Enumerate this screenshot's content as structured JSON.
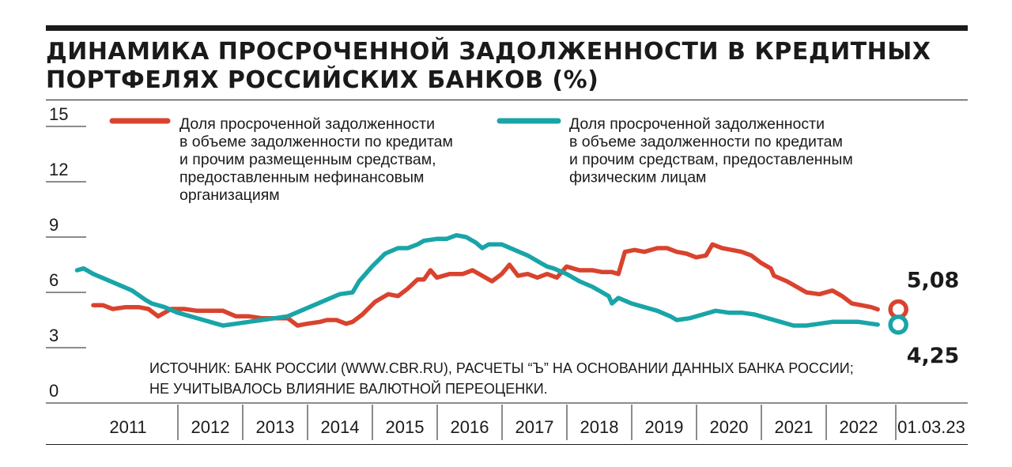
{
  "header": {
    "title_line1": "ДИНАМИКА ПРОСРОЧЕННОЙ ЗАДОЛЖЕННОСТИ В КРЕДИТНЫХ",
    "title_line2": "ПОРТФЕЛЯХ РОССИЙСКИХ БАНКОВ (%)"
  },
  "colors": {
    "series_corporate": "#d9432e",
    "series_retail": "#19a5a8",
    "text": "#1a1a1a"
  },
  "chart_data": {
    "type": "line",
    "title": "ДИНАМИКА ПРОСРОЧЕННОЙ ЗАДОЛЖЕННОСТИ В КРЕДИТНЫХ ПОРТФЕЛЯХ РОССИЙСКИХ БАНКОВ (%)",
    "ylim": [
      0,
      15
    ],
    "yticks": [
      "15",
      "12",
      "9",
      "6",
      "3",
      "0"
    ],
    "xticks": [
      "2011",
      "2012",
      "2013",
      "2014",
      "2015",
      "2016",
      "2017",
      "2018",
      "2019",
      "2020",
      "2021",
      "2022",
      "01.03.23"
    ],
    "grid": false,
    "legend_position": "top",
    "series": [
      {
        "name": "Доля просроченной задолженности в объеме задолженности по кредитам и прочим размещенным средствам, предоставленным нефинансовым организациям",
        "legend_lines": [
          "Доля просроченной задолженности",
          "в объеме задолженности по кредитам",
          "и прочим размещенным средствам,",
          "предоставленным нефинансовым",
          "организациям"
        ],
        "color": "#d9432e",
        "end_value": 5.08,
        "end_label": "5,08",
        "points": [
          [
            2011.0,
            5.3
          ],
          [
            2011.15,
            5.3
          ],
          [
            2011.3,
            5.1
          ],
          [
            2011.5,
            5.2
          ],
          [
            2011.7,
            5.2
          ],
          [
            2011.85,
            5.1
          ],
          [
            2012.0,
            4.7
          ],
          [
            2012.2,
            5.1
          ],
          [
            2012.4,
            5.1
          ],
          [
            2012.6,
            5.0
          ],
          [
            2012.8,
            5.0
          ],
          [
            2013.0,
            5.0
          ],
          [
            2013.2,
            4.7
          ],
          [
            2013.4,
            4.7
          ],
          [
            2013.6,
            4.6
          ],
          [
            2013.8,
            4.6
          ],
          [
            2014.0,
            4.6
          ],
          [
            2014.15,
            4.2
          ],
          [
            2014.3,
            4.3
          ],
          [
            2014.5,
            4.4
          ],
          [
            2014.6,
            4.5
          ],
          [
            2014.75,
            4.5
          ],
          [
            2014.9,
            4.3
          ],
          [
            2015.0,
            4.4
          ],
          [
            2015.15,
            4.8
          ],
          [
            2015.35,
            5.5
          ],
          [
            2015.55,
            5.9
          ],
          [
            2015.7,
            5.8
          ],
          [
            2015.85,
            6.2
          ],
          [
            2016.0,
            6.7
          ],
          [
            2016.1,
            6.7
          ],
          [
            2016.2,
            7.2
          ],
          [
            2016.3,
            6.8
          ],
          [
            2016.5,
            7.0
          ],
          [
            2016.7,
            7.0
          ],
          [
            2016.85,
            7.2
          ],
          [
            2017.0,
            6.9
          ],
          [
            2017.15,
            6.6
          ],
          [
            2017.3,
            7.0
          ],
          [
            2017.42,
            7.5
          ],
          [
            2017.55,
            6.9
          ],
          [
            2017.7,
            7.0
          ],
          [
            2017.85,
            6.8
          ],
          [
            2018.0,
            7.0
          ],
          [
            2018.15,
            6.8
          ],
          [
            2018.3,
            7.4
          ],
          [
            2018.5,
            7.2
          ],
          [
            2018.7,
            7.2
          ],
          [
            2018.85,
            7.1
          ],
          [
            2019.0,
            7.1
          ],
          [
            2019.1,
            7.0
          ],
          [
            2019.2,
            8.2
          ],
          [
            2019.35,
            8.3
          ],
          [
            2019.5,
            8.2
          ],
          [
            2019.7,
            8.4
          ],
          [
            2019.85,
            8.4
          ],
          [
            2020.0,
            8.2
          ],
          [
            2020.15,
            8.1
          ],
          [
            2020.3,
            7.9
          ],
          [
            2020.45,
            8.0
          ],
          [
            2020.55,
            8.6
          ],
          [
            2020.7,
            8.4
          ],
          [
            2020.85,
            8.3
          ],
          [
            2021.0,
            8.2
          ],
          [
            2021.15,
            8.0
          ],
          [
            2021.3,
            7.6
          ],
          [
            2021.45,
            7.3
          ],
          [
            2021.5,
            6.9
          ],
          [
            2021.7,
            6.6
          ],
          [
            2021.85,
            6.3
          ],
          [
            2022.0,
            6.0
          ],
          [
            2022.2,
            5.9
          ],
          [
            2022.4,
            6.1
          ],
          [
            2022.55,
            5.8
          ],
          [
            2022.7,
            5.4
          ],
          [
            2022.85,
            5.3
          ],
          [
            2023.0,
            5.2
          ],
          [
            2023.1,
            5.08
          ]
        ]
      },
      {
        "name": "Доля просроченной задолженности в объеме задолженности по кредитам и прочим средствам, предоставленным физическим лицам",
        "legend_lines": [
          "Доля просроченной задолженности",
          "в объеме задолженности по кредитам",
          "и прочим средствам, предоставленным",
          "физическим лицам"
        ],
        "color": "#19a5a8",
        "end_value": 4.25,
        "end_label": "4,25",
        "points": [
          [
            2010.75,
            7.2
          ],
          [
            2010.85,
            7.3
          ],
          [
            2011.0,
            7.0
          ],
          [
            2011.2,
            6.7
          ],
          [
            2011.4,
            6.4
          ],
          [
            2011.6,
            6.1
          ],
          [
            2011.8,
            5.6
          ],
          [
            2011.9,
            5.4
          ],
          [
            2012.1,
            5.2
          ],
          [
            2012.3,
            4.9
          ],
          [
            2012.5,
            4.7
          ],
          [
            2012.7,
            4.5
          ],
          [
            2012.9,
            4.3
          ],
          [
            2013.0,
            4.2
          ],
          [
            2013.2,
            4.3
          ],
          [
            2013.4,
            4.4
          ],
          [
            2013.6,
            4.5
          ],
          [
            2013.8,
            4.6
          ],
          [
            2014.0,
            4.7
          ],
          [
            2014.2,
            5.0
          ],
          [
            2014.4,
            5.3
          ],
          [
            2014.6,
            5.6
          ],
          [
            2014.8,
            5.9
          ],
          [
            2015.0,
            6.0
          ],
          [
            2015.1,
            6.6
          ],
          [
            2015.3,
            7.4
          ],
          [
            2015.5,
            8.1
          ],
          [
            2015.7,
            8.4
          ],
          [
            2015.85,
            8.4
          ],
          [
            2016.0,
            8.6
          ],
          [
            2016.1,
            8.8
          ],
          [
            2016.3,
            8.9
          ],
          [
            2016.45,
            8.9
          ],
          [
            2016.6,
            9.1
          ],
          [
            2016.75,
            9.0
          ],
          [
            2016.9,
            8.7
          ],
          [
            2017.0,
            8.4
          ],
          [
            2017.1,
            8.6
          ],
          [
            2017.3,
            8.6
          ],
          [
            2017.5,
            8.3
          ],
          [
            2017.7,
            8.0
          ],
          [
            2017.9,
            7.6
          ],
          [
            2018.0,
            7.4
          ],
          [
            2018.1,
            7.3
          ],
          [
            2018.3,
            7.0
          ],
          [
            2018.5,
            6.6
          ],
          [
            2018.7,
            6.3
          ],
          [
            2018.85,
            6.0
          ],
          [
            2018.95,
            5.8
          ],
          [
            2019.0,
            5.4
          ],
          [
            2019.1,
            5.7
          ],
          [
            2019.3,
            5.4
          ],
          [
            2019.5,
            5.2
          ],
          [
            2019.7,
            5.0
          ],
          [
            2019.9,
            4.7
          ],
          [
            2020.0,
            4.5
          ],
          [
            2020.2,
            4.6
          ],
          [
            2020.4,
            4.8
          ],
          [
            2020.6,
            5.0
          ],
          [
            2020.8,
            4.9
          ],
          [
            2021.0,
            4.9
          ],
          [
            2021.2,
            4.8
          ],
          [
            2021.4,
            4.6
          ],
          [
            2021.6,
            4.4
          ],
          [
            2021.8,
            4.2
          ],
          [
            2022.0,
            4.2
          ],
          [
            2022.2,
            4.3
          ],
          [
            2022.4,
            4.4
          ],
          [
            2022.6,
            4.4
          ],
          [
            2022.8,
            4.4
          ],
          [
            2023.0,
            4.3
          ],
          [
            2023.1,
            4.25
          ]
        ]
      }
    ]
  },
  "source_note": {
    "line1": "ИСТОЧНИК: БАНК РОССИИ (WWW.CBR.RU), РАСЧЕТЫ “Ъ” НА ОСНОВАНИИ ДАННЫХ БАНКА РОССИИ;",
    "line2": "НЕ УЧИТЫВАЛОСЬ ВЛИЯНИЕ ВАЛЮТНОЙ ПЕРЕОЦЕНКИ."
  }
}
